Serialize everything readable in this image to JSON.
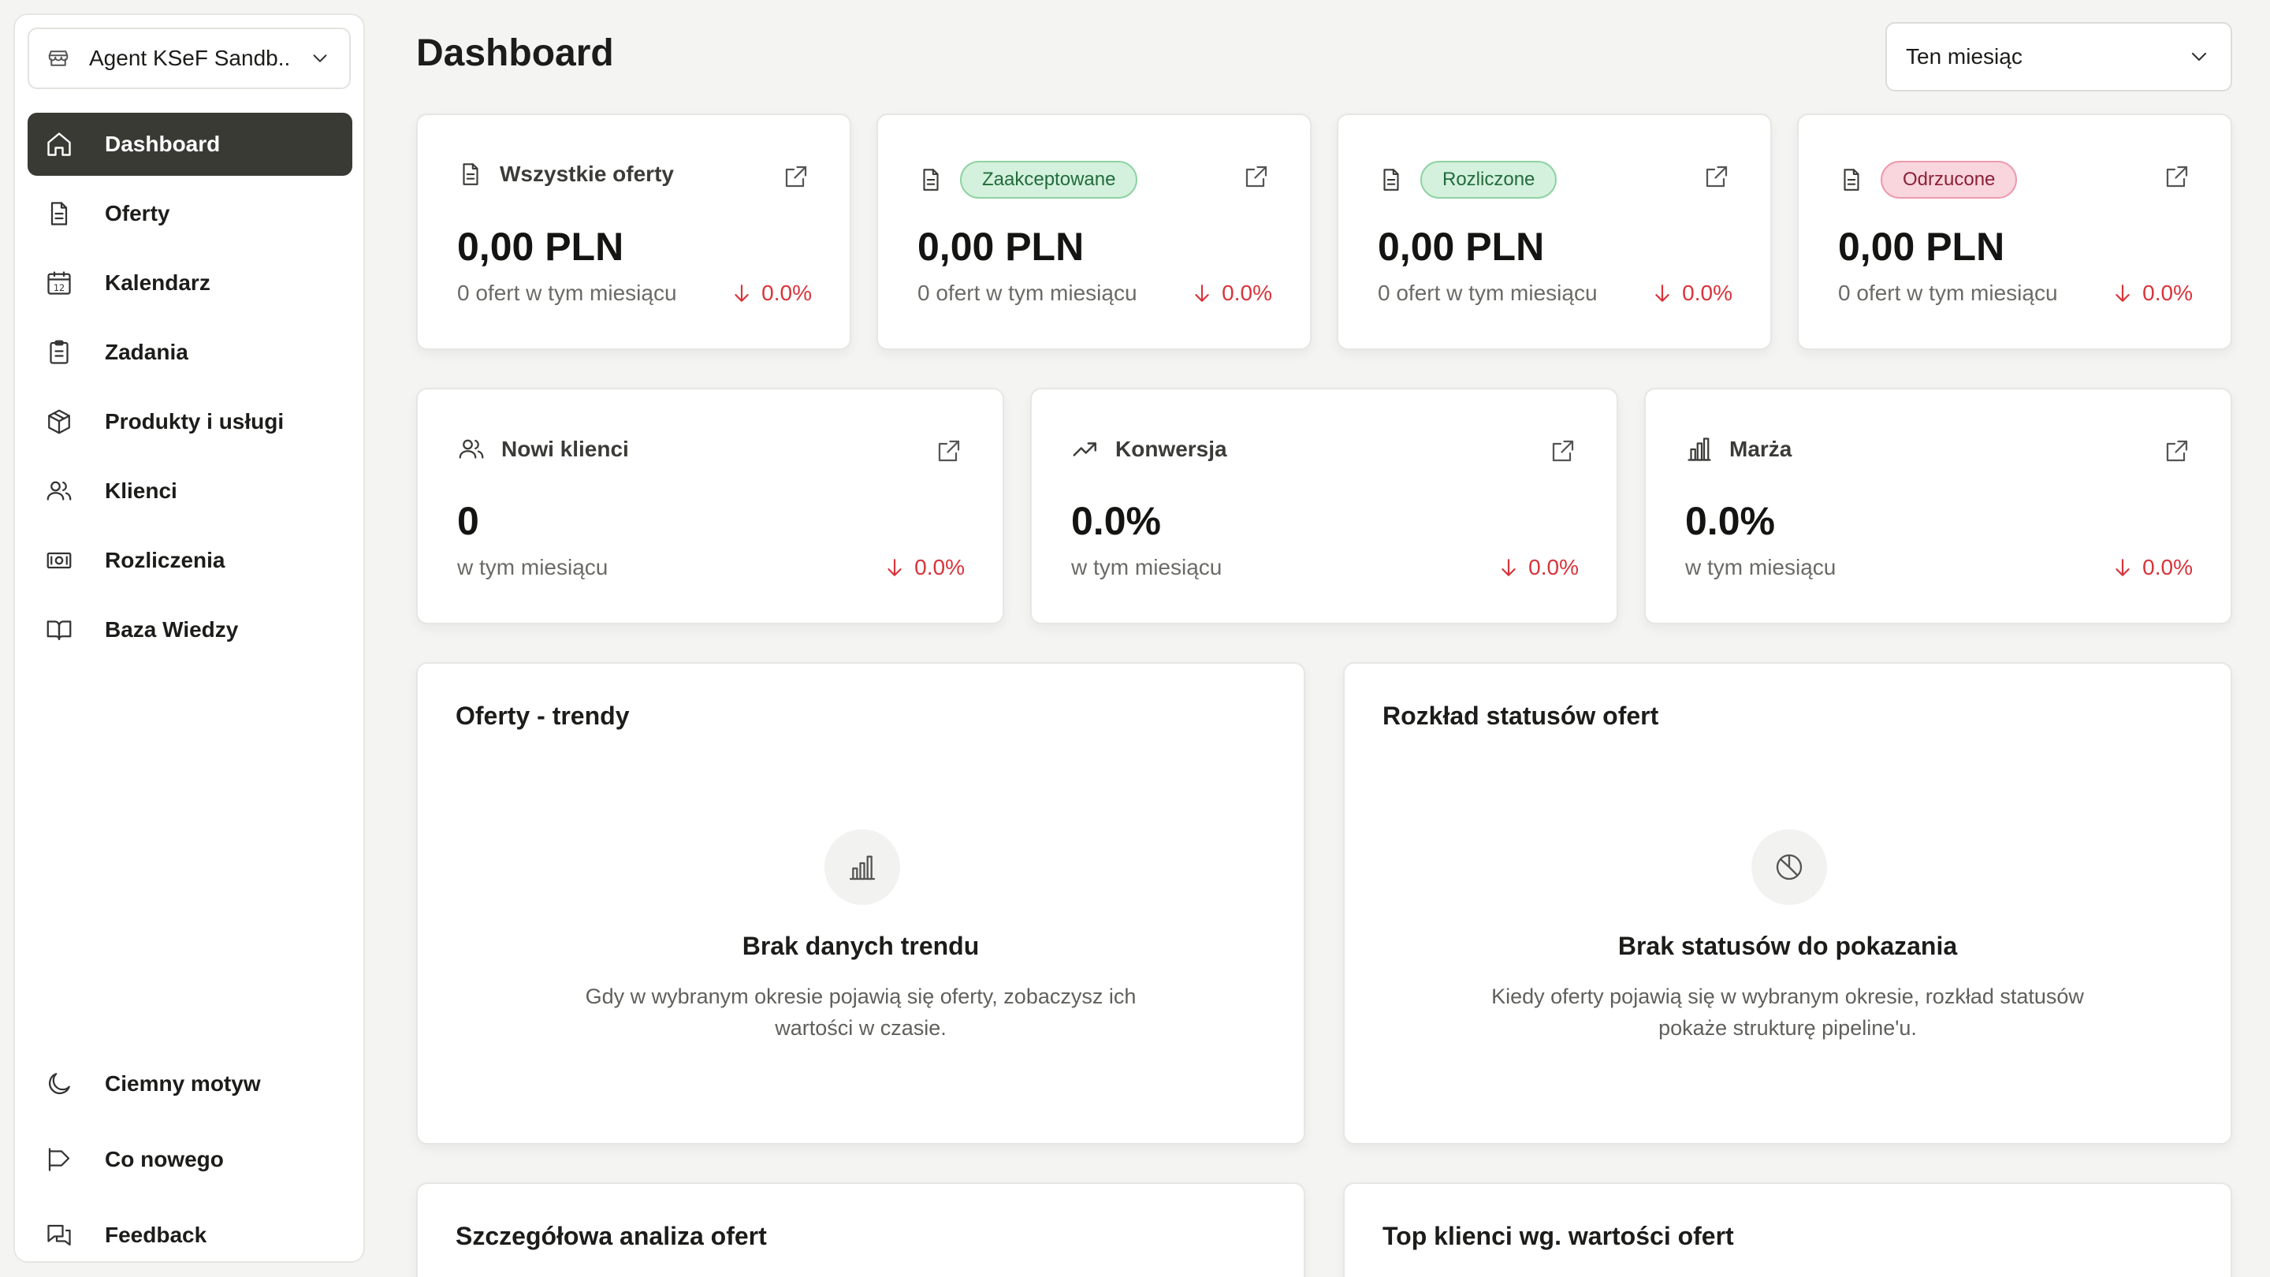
{
  "workspace": {
    "name": "Agent KSeF Sandb..."
  },
  "nav": {
    "items": [
      {
        "label": "Dashboard",
        "icon": "home-icon"
      },
      {
        "label": "Oferty",
        "icon": "document-icon"
      },
      {
        "label": "Kalendarz",
        "icon": "calendar-icon",
        "day": "12"
      },
      {
        "label": "Zadania",
        "icon": "clipboard-icon"
      },
      {
        "label": "Produkty i usługi",
        "icon": "package-icon"
      },
      {
        "label": "Klienci",
        "icon": "users-icon"
      },
      {
        "label": "Rozliczenia",
        "icon": "banknote-icon"
      },
      {
        "label": "Baza Wiedzy",
        "icon": "book-icon"
      }
    ],
    "bottom": [
      {
        "label": "Ciemny motyw",
        "icon": "moon-icon"
      },
      {
        "label": "Co nowego",
        "icon": "megaphone-icon"
      },
      {
        "label": "Feedback",
        "icon": "messages-icon"
      }
    ]
  },
  "header": {
    "title": "Dashboard",
    "period": "Ten miesiąc"
  },
  "kpis": [
    {
      "title": "Wszystkie oferty",
      "value": "0,00 PLN",
      "sub": "0 ofert w tym miesiącu",
      "delta": "0.0%"
    },
    {
      "badge": "Zaakceptowane",
      "value": "0,00 PLN",
      "sub": "0 ofert w tym miesiącu",
      "delta": "0.0%"
    },
    {
      "badge": "Rozliczone",
      "value": "0,00 PLN",
      "sub": "0 ofert w tym miesiącu",
      "delta": "0.0%"
    },
    {
      "badge": "Odrzucone",
      "value": "0,00 PLN",
      "sub": "0 ofert w tym miesiącu",
      "delta": "0.0%"
    }
  ],
  "metrics": [
    {
      "title": "Nowi klienci",
      "value": "0",
      "sub": "w tym miesiącu",
      "delta": "0.0%"
    },
    {
      "title": "Konwersja",
      "value": "0.0%",
      "sub": "w tym miesiącu",
      "delta": "0.0%"
    },
    {
      "title": "Marża",
      "value": "0.0%",
      "sub": "w tym miesiącu",
      "delta": "0.0%"
    }
  ],
  "panels": {
    "trends": {
      "title": "Oferty - trendy",
      "empty_title": "Brak danych trendu",
      "empty_desc": "Gdy w wybranym okresie pojawią się oferty, zobaczysz ich wartości w czasie."
    },
    "status": {
      "title": "Rozkład statusów ofert",
      "empty_title": "Brak statusów do pokazania",
      "empty_desc": "Kiedy oferty pojawią się w wybranym okresie, rozkład statusów pokaże strukturę pipeline'u."
    },
    "analysis": {
      "title": "Szczegółowa analiza ofert"
    },
    "top_clients": {
      "title": "Top klienci wg. wartości ofert"
    }
  },
  "colors": {
    "active_nav_bg": "#3a3a35",
    "negative_delta": "#d9333a",
    "badge_green_bg": "#d3f1dc",
    "badge_red_bg": "#f9d5dd"
  }
}
